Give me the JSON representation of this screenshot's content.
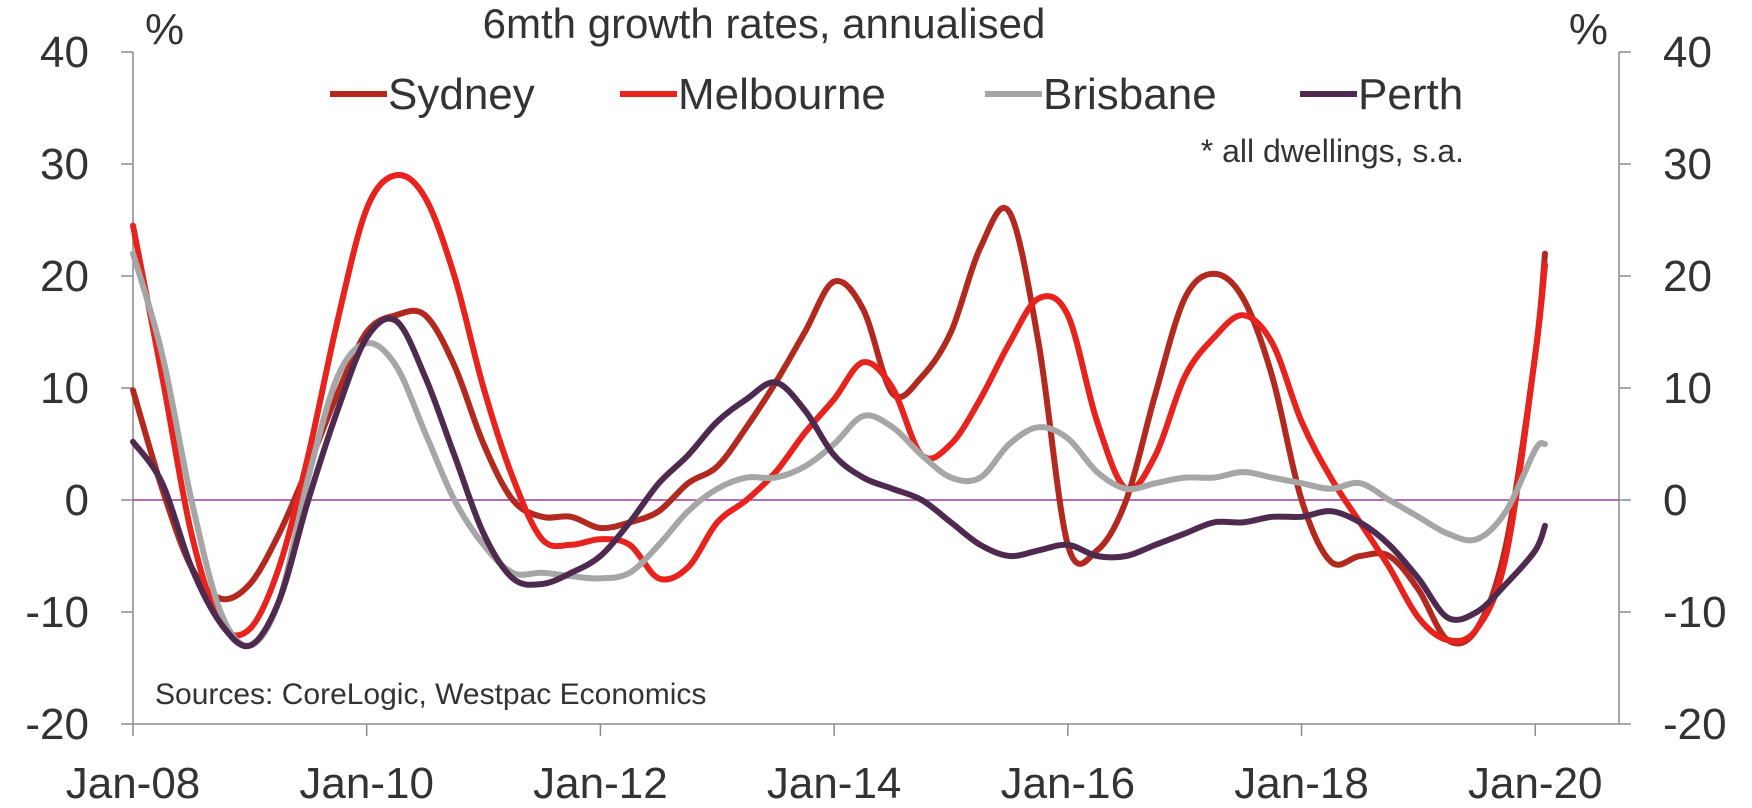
{
  "chart_data": {
    "type": "line",
    "title": "6mth growth rates, annualised",
    "left_unit": "%",
    "right_unit": "%",
    "note": "* all dwellings, s.a.",
    "source": "Sources: CoreLogic, Westpac Economics",
    "x_start": "Jan-08",
    "x_end": "Feb-20",
    "x_ticks": [
      "Jan-08",
      "Jan-10",
      "Jan-12",
      "Jan-14",
      "Jan-16",
      "Jan-18",
      "Jan-20"
    ],
    "y_ticks": [
      "40",
      "30",
      "20",
      "10",
      "0",
      "-10",
      "-20"
    ],
    "ylim": [
      -20,
      40
    ],
    "legend_position": "top",
    "zero_line_color": "#9b3e9e",
    "series": [
      {
        "name": "Sydney",
        "color": "#b22a1f",
        "points": [
          [
            "Jan-08",
            9.8
          ],
          [
            "Apr-08",
            1
          ],
          [
            "Jul-08",
            -6
          ],
          [
            "Oct-08",
            -8.8
          ],
          [
            "Jan-09",
            -7.5
          ],
          [
            "Apr-09",
            -3
          ],
          [
            "Jul-09",
            3
          ],
          [
            "Oct-09",
            9.5
          ],
          [
            "Jan-10",
            15
          ],
          [
            "Apr-10",
            16.5
          ],
          [
            "Jul-10",
            16.5
          ],
          [
            "Oct-10",
            12
          ],
          [
            "Jan-11",
            5
          ],
          [
            "Apr-11",
            0
          ],
          [
            "Jul-11",
            -1.5
          ],
          [
            "Oct-11",
            -1.5
          ],
          [
            "Jan-12",
            -2.5
          ],
          [
            "Apr-12",
            -2
          ],
          [
            "Jul-12",
            -1
          ],
          [
            "Oct-12",
            1.5
          ],
          [
            "Jan-13",
            3
          ],
          [
            "Apr-13",
            6.5
          ],
          [
            "Jul-13",
            10.5
          ],
          [
            "Oct-13",
            15
          ],
          [
            "Jan-14",
            19.5
          ],
          [
            "Apr-14",
            17
          ],
          [
            "Jul-14",
            9.5
          ],
          [
            "Oct-14",
            11
          ],
          [
            "Jan-15",
            15
          ],
          [
            "Apr-15",
            22.5
          ],
          [
            "Jul-15",
            25.7
          ],
          [
            "Oct-15",
            14
          ],
          [
            "Jan-16",
            -4
          ],
          [
            "Apr-16",
            -4.5
          ],
          [
            "Jul-16",
            0
          ],
          [
            "Oct-16",
            9.5
          ],
          [
            "Jan-17",
            18
          ],
          [
            "Apr-17",
            20.2
          ],
          [
            "Jul-17",
            18
          ],
          [
            "Oct-17",
            11
          ],
          [
            "Jan-18",
            0
          ],
          [
            "Apr-18",
            -5.5
          ],
          [
            "Jul-18",
            -5
          ],
          [
            "Oct-18",
            -5
          ],
          [
            "Jan-19",
            -8
          ],
          [
            "Apr-19",
            -12.5
          ],
          [
            "Jul-19",
            -11.5
          ],
          [
            "Oct-19",
            -4
          ],
          [
            "Jan-20",
            13
          ],
          [
            "Feb-20",
            22
          ]
        ]
      },
      {
        "name": "Melbourne",
        "color": "#e8221c",
        "points": [
          [
            "Jan-08",
            24.5
          ],
          [
            "Apr-08",
            11
          ],
          [
            "Jul-08",
            -3
          ],
          [
            "Oct-08",
            -11
          ],
          [
            "Jan-09",
            -11.5
          ],
          [
            "Apr-09",
            -6
          ],
          [
            "Jul-09",
            4
          ],
          [
            "Oct-09",
            16
          ],
          [
            "Jan-10",
            26
          ],
          [
            "Apr-10",
            29
          ],
          [
            "Jul-10",
            27
          ],
          [
            "Oct-10",
            20
          ],
          [
            "Jan-11",
            10
          ],
          [
            "Apr-11",
            2
          ],
          [
            "Jul-11",
            -3.5
          ],
          [
            "Oct-11",
            -4
          ],
          [
            "Jan-12",
            -3.5
          ],
          [
            "Apr-12",
            -4
          ],
          [
            "Jul-12",
            -7
          ],
          [
            "Oct-12",
            -6
          ],
          [
            "Jan-13",
            -2
          ],
          [
            "Apr-13",
            0
          ],
          [
            "Jul-13",
            2.5
          ],
          [
            "Oct-13",
            6
          ],
          [
            "Jan-14",
            9
          ],
          [
            "Apr-14",
            12.3
          ],
          [
            "Jul-14",
            10
          ],
          [
            "Oct-14",
            4
          ],
          [
            "Jan-15",
            5
          ],
          [
            "Apr-15",
            9
          ],
          [
            "Jul-15",
            14
          ],
          [
            "Oct-15",
            18
          ],
          [
            "Jan-16",
            16.5
          ],
          [
            "Apr-16",
            7
          ],
          [
            "Jul-16",
            1
          ],
          [
            "Oct-16",
            4
          ],
          [
            "Jan-17",
            11
          ],
          [
            "Apr-17",
            14.5
          ],
          [
            "Jul-17",
            16.5
          ],
          [
            "Oct-17",
            14
          ],
          [
            "Jan-18",
            7
          ],
          [
            "Apr-18",
            2
          ],
          [
            "Jul-18",
            -2
          ],
          [
            "Oct-18",
            -6
          ],
          [
            "Jan-19",
            -10.5
          ],
          [
            "Apr-19",
            -12.5
          ],
          [
            "Jul-19",
            -11.5
          ],
          [
            "Oct-19",
            -5
          ],
          [
            "Jan-20",
            13
          ],
          [
            "Feb-20",
            21
          ]
        ]
      },
      {
        "name": "Brisbane",
        "color": "#a6a6a6",
        "points": [
          [
            "Jan-08",
            22
          ],
          [
            "Apr-08",
            13
          ],
          [
            "Jul-08",
            0
          ],
          [
            "Oct-08",
            -10
          ],
          [
            "Jan-09",
            -13
          ],
          [
            "Apr-09",
            -9
          ],
          [
            "Jul-09",
            2
          ],
          [
            "Oct-09",
            11
          ],
          [
            "Jan-10",
            14
          ],
          [
            "Apr-10",
            12
          ],
          [
            "Jul-10",
            6
          ],
          [
            "Oct-10",
            0
          ],
          [
            "Jan-11",
            -4
          ],
          [
            "Apr-11",
            -6.5
          ],
          [
            "Jul-11",
            -6.5
          ],
          [
            "Oct-11",
            -6.8
          ],
          [
            "Jan-12",
            -7
          ],
          [
            "Apr-12",
            -6.5
          ],
          [
            "Jul-12",
            -4
          ],
          [
            "Oct-12",
            -1
          ],
          [
            "Jan-13",
            1
          ],
          [
            "Apr-13",
            2
          ],
          [
            "Jul-13",
            2
          ],
          [
            "Oct-13",
            3
          ],
          [
            "Jan-14",
            5
          ],
          [
            "Apr-14",
            7.5
          ],
          [
            "Jul-14",
            6.5
          ],
          [
            "Oct-14",
            4
          ],
          [
            "Jan-15",
            2
          ],
          [
            "Apr-15",
            2
          ],
          [
            "Jul-15",
            5
          ],
          [
            "Oct-15",
            6.5
          ],
          [
            "Jan-16",
            5.5
          ],
          [
            "Apr-16",
            2.5
          ],
          [
            "Jul-16",
            1
          ],
          [
            "Oct-16",
            1.5
          ],
          [
            "Jan-17",
            2
          ],
          [
            "Apr-17",
            2
          ],
          [
            "Jul-17",
            2.5
          ],
          [
            "Oct-17",
            2
          ],
          [
            "Jan-18",
            1.5
          ],
          [
            "Apr-18",
            1
          ],
          [
            "Jul-18",
            1.5
          ],
          [
            "Oct-18",
            0
          ],
          [
            "Jan-19",
            -1.5
          ],
          [
            "Apr-19",
            -3
          ],
          [
            "Jul-19",
            -3.5
          ],
          [
            "Oct-19",
            -1
          ],
          [
            "Jan-20",
            4.5
          ],
          [
            "Feb-20",
            5
          ]
        ]
      },
      {
        "name": "Perth",
        "color": "#4f2a4f",
        "points": [
          [
            "Jan-08",
            5.2
          ],
          [
            "Apr-08",
            1.5
          ],
          [
            "Jul-08",
            -6
          ],
          [
            "Oct-08",
            -11
          ],
          [
            "Jan-09",
            -13
          ],
          [
            "Apr-09",
            -9
          ],
          [
            "Jul-09",
            0
          ],
          [
            "Oct-09",
            8
          ],
          [
            "Jan-10",
            14.5
          ],
          [
            "Apr-10",
            16
          ],
          [
            "Jul-10",
            11
          ],
          [
            "Oct-10",
            4
          ],
          [
            "Jan-11",
            -3
          ],
          [
            "Apr-11",
            -7
          ],
          [
            "Jul-11",
            -7.5
          ],
          [
            "Oct-11",
            -6.5
          ],
          [
            "Jan-12",
            -5
          ],
          [
            "Apr-12",
            -2
          ],
          [
            "Jul-12",
            1.5
          ],
          [
            "Oct-12",
            4
          ],
          [
            "Jan-13",
            7
          ],
          [
            "Apr-13",
            9
          ],
          [
            "Jul-13",
            10.5
          ],
          [
            "Oct-13",
            8
          ],
          [
            "Jan-14",
            4
          ],
          [
            "Apr-14",
            2
          ],
          [
            "Jul-14",
            1
          ],
          [
            "Oct-14",
            0
          ],
          [
            "Jan-15",
            -2
          ],
          [
            "Apr-15",
            -4
          ],
          [
            "Jul-15",
            -5
          ],
          [
            "Oct-15",
            -4.5
          ],
          [
            "Jan-16",
            -4
          ],
          [
            "Apr-16",
            -5
          ],
          [
            "Jul-16",
            -5
          ],
          [
            "Oct-16",
            -4
          ],
          [
            "Jan-17",
            -3
          ],
          [
            "Apr-17",
            -2
          ],
          [
            "Jul-17",
            -2
          ],
          [
            "Oct-17",
            -1.5
          ],
          [
            "Jan-18",
            -1.5
          ],
          [
            "Apr-18",
            -1
          ],
          [
            "Jul-18",
            -2
          ],
          [
            "Oct-18",
            -4
          ],
          [
            "Jan-19",
            -7
          ],
          [
            "Apr-19",
            -10.5
          ],
          [
            "Jul-19",
            -10
          ],
          [
            "Oct-19",
            -7.5
          ],
          [
            "Jan-20",
            -4.5
          ],
          [
            "Feb-20",
            -2.3
          ]
        ]
      }
    ]
  }
}
